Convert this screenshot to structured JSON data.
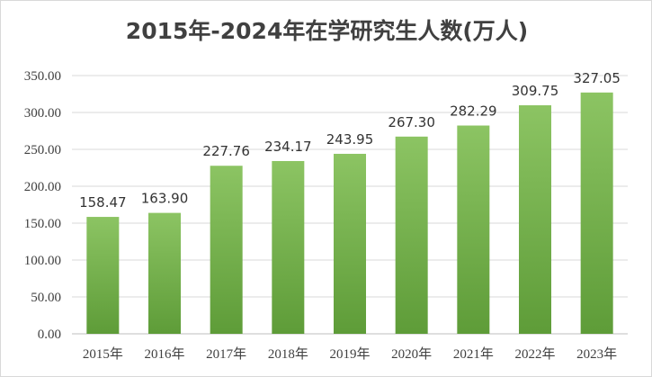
{
  "chart_data": {
    "type": "bar",
    "title": "2015年-2024年在学研究生人数(万人)",
    "categories": [
      "2015年",
      "2016年",
      "2017年",
      "2018年",
      "2019年",
      "2020年",
      "2021年",
      "2022年",
      "2023年"
    ],
    "values": [
      158.47,
      163.9,
      227.76,
      234.17,
      243.95,
      267.3,
      282.29,
      309.75,
      327.05
    ],
    "data_labels": [
      "158.47",
      "163.90",
      "227.76",
      "234.17",
      "243.95",
      "267.30",
      "282.29",
      "309.75",
      "327.05"
    ],
    "xlabel": "",
    "ylabel": "",
    "ylim": [
      0,
      350
    ],
    "yticks": [
      0,
      50,
      100,
      150,
      200,
      250,
      300,
      350
    ],
    "ytick_labels": [
      "0.00",
      "50.00",
      "100.00",
      "150.00",
      "200.00",
      "250.00",
      "300.00",
      "350.00"
    ],
    "grid": true,
    "legend": "none",
    "bar_color_top": "#8cc463",
    "bar_color_bottom": "#5e9c38",
    "grid_color": "#d9d9d9",
    "text_color": "#404040"
  }
}
